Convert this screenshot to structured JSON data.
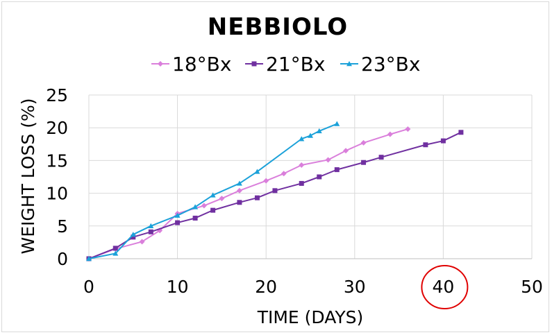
{
  "chart_data": {
    "type": "line",
    "title": "NEBBIOLO",
    "xlabel": "TIME (DAYS)",
    "ylabel": "WEIGHT LOSS (%)",
    "xlim": [
      0,
      50
    ],
    "ylim": [
      0,
      25
    ],
    "xticks": [
      "0",
      "10",
      "20",
      "30",
      "40",
      "50"
    ],
    "yticks": [
      "0",
      "5",
      "10",
      "15",
      "20",
      "25"
    ],
    "grid": true,
    "legend_position": "top",
    "highlighted_tick": "40",
    "highlight_color": "#e00000",
    "series": [
      {
        "name": "18°Bx",
        "color": "#da7fdb",
        "marker": "diamond",
        "points": [
          [
            0,
            0
          ],
          [
            3,
            1.5
          ],
          [
            6,
            2.6
          ],
          [
            8,
            4.3
          ],
          [
            10,
            6.9
          ],
          [
            13,
            8.1
          ],
          [
            15,
            9.2
          ],
          [
            17,
            10.4
          ],
          [
            20,
            11.9
          ],
          [
            22,
            13.0
          ],
          [
            24,
            14.3
          ],
          [
            27,
            15.1
          ],
          [
            29,
            16.5
          ],
          [
            31,
            17.7
          ],
          [
            34,
            19.0
          ],
          [
            36,
            19.8
          ]
        ]
      },
      {
        "name": "21°Bx",
        "color": "#7030a0",
        "marker": "square",
        "points": [
          [
            0,
            0
          ],
          [
            3,
            1.6
          ],
          [
            5,
            3.3
          ],
          [
            7,
            4.1
          ],
          [
            10,
            5.5
          ],
          [
            12,
            6.2
          ],
          [
            14,
            7.4
          ],
          [
            17,
            8.6
          ],
          [
            19,
            9.3
          ],
          [
            21,
            10.4
          ],
          [
            24,
            11.5
          ],
          [
            26,
            12.5
          ],
          [
            28,
            13.6
          ],
          [
            31,
            14.7
          ],
          [
            33,
            15.5
          ],
          [
            38,
            17.4
          ],
          [
            40,
            18.0
          ],
          [
            42,
            19.3
          ]
        ]
      },
      {
        "name": "23°Bx",
        "color": "#1ba1d9",
        "marker": "triangle",
        "points": [
          [
            0,
            0
          ],
          [
            3,
            0.8
          ],
          [
            5,
            3.7
          ],
          [
            7,
            5.0
          ],
          [
            10,
            6.6
          ],
          [
            12,
            7.9
          ],
          [
            14,
            9.7
          ],
          [
            17,
            11.5
          ],
          [
            19,
            13.3
          ],
          [
            24,
            18.3
          ],
          [
            25,
            18.8
          ],
          [
            26,
            19.5
          ],
          [
            28,
            20.6
          ]
        ]
      }
    ]
  }
}
